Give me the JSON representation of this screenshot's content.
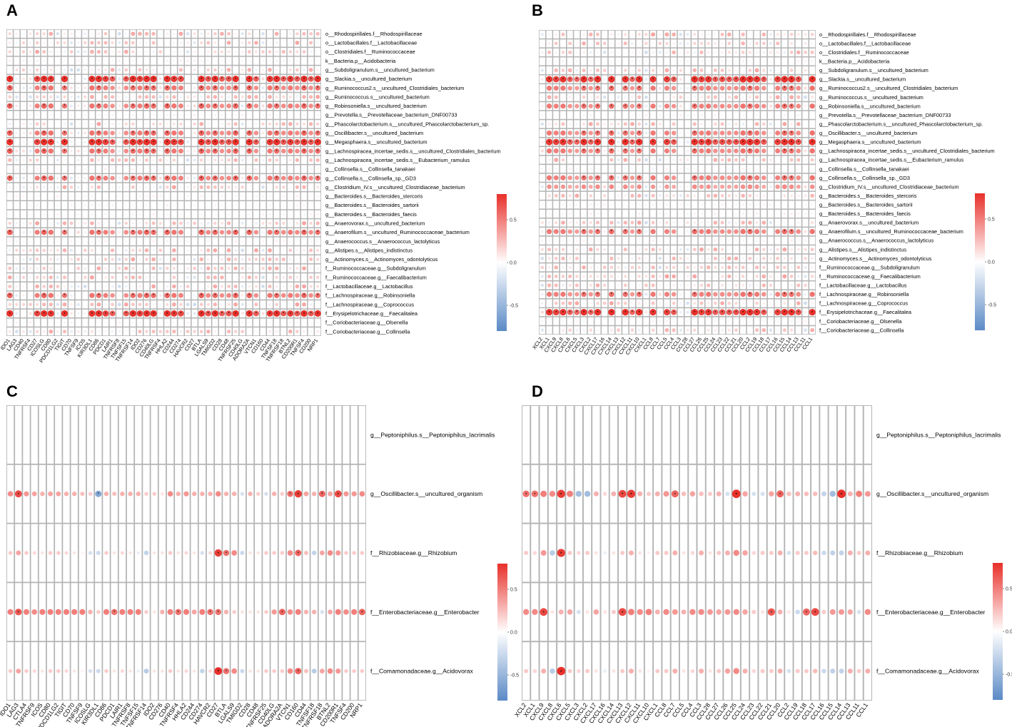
{
  "figure": {
    "panel_labels": [
      "A",
      "B",
      "C",
      "D"
    ],
    "legend_ticks": [
      "0.5",
      "0.0",
      "-0.5"
    ]
  },
  "colors": {
    "positive": "#e8302a",
    "negative": "#5b8ac6",
    "neutral": "#ffffff",
    "grid": "#b5b5b5",
    "star": "#000000"
  },
  "chart_data": [
    {
      "panel": "A",
      "type": "heatmap",
      "mark": "circle",
      "color_range": [
        -0.8,
        0.8
      ],
      "x_categories": [
        "IDO1",
        "LAG3",
        "CD40",
        "TNFRSF4",
        "CD27",
        "ICOSLG",
        "CD80",
        "PDCD1LG2",
        "TIGIT",
        "CD70",
        "TNFSF9",
        "ICOS",
        "KIR3DL1",
        "CD86",
        "PDCD1",
        "LAIR1",
        "TNFRSF8",
        "TNFSF15",
        "TNFRSF14",
        "IDO2",
        "CD276",
        "CD40LG",
        "TNFRSF4",
        "HHLA2",
        "CD244",
        "CD274",
        "HAVCR2",
        "CD27",
        "BTLA",
        "LGALS9",
        "TMIGD2",
        "CD28",
        "CD48",
        "TNFRSF25",
        "CD40LG",
        "ADORA2A",
        "VTCN1",
        "CD160",
        "CD44",
        "TNFSF18",
        "TNFRSF18",
        "BTNL2",
        "CD200R1",
        "TNFSF4",
        "CD200",
        "NRP1"
      ],
      "y_categories": [
        "o__Rhodospirillales.f__Rhodospirillaceae",
        "o__Lactobacillales.f__Lactobacillaceae",
        "o__Clostridiales.f__Ruminococcaceae",
        "k__Bacteria.p__Acidobacteria",
        "g__Subdoligranulum.s__uncultured_bacterium",
        "g__Slackia.s__uncultured_bacterium",
        "g__Ruminococcus2.s__uncultured_Clostridiales_bacterium",
        "g__Ruminococcus.s__uncultured_bacterium",
        "g__Robinsoniella.s__uncultured_bacterium",
        "g__Prevotella.s__Prevotellaceae_bacterium_DNF00733",
        "g__Phascolarctobacterium.s__uncultured_Phascolarctobacterium_sp.",
        "g__Oscillibacter.s__uncultured_bacterium",
        "g__Megasphaera.s__uncultured_bacterium",
        "g__Lachnospiracea_incertae_sedis.s__uncultured_Clostridiales_bacterium",
        "g__Lachnospiracea_incertae_sedis.s__Eubacterium_ramulus",
        "g__Collinsella.s__Collinsella_tanakaei",
        "g__Collinsella.s__Collinsella_sp._GD3",
        "g__Clostridium_IV.s__uncultured_Clostridiaceae_bacterium",
        "g__Bacteroides.s__Bacteroides_stercoris",
        "g__Bacteroides.s__Bacteroides_sartorii",
        "g__Bacteroides.s__Bacteroides_faecis",
        "g__Anaerovorax.s__uncultured_bacterium",
        "g__Anaerofilum.s__uncultured_Ruminococcaceae_bacterium",
        "g__Anaerococcus.s__Anaerococcus_lactolyticus",
        "g__Alistipes.s__Alistipes_indistinctus",
        "g__Actinomyces.s__Actinomyces_odontolyticus",
        "f__Ruminococcaceae.g__Subdoligranulum",
        "f__Ruminococcaceae.g__Faecalibacterium",
        "f__Lactobacillaceae.g__Lactobacillus",
        "f__Lachnospiraceae.g__Robinsoniella",
        "f__Lachnospiraceae.g__Coprococcus",
        "f__Erysipelotrichaceae.g__Faecalitalea",
        "f__Coriobacteriaceae.g__Olsenella",
        "f__Coriobacteriaceae.g__Collinsella"
      ],
      "strong_rows": [
        {
          "row": 5,
          "level": 0.8
        },
        {
          "row": 12,
          "level": 0.8
        },
        {
          "row": 31,
          "level": 0.8
        },
        {
          "row": 6,
          "level": 0.55
        },
        {
          "row": 8,
          "level": 0.55
        },
        {
          "row": 11,
          "level": 0.55
        },
        {
          "row": 13,
          "level": 0.55
        },
        {
          "row": 16,
          "level": 0.55
        },
        {
          "row": 22,
          "level": 0.55
        },
        {
          "row": 29,
          "level": 0.55
        },
        {
          "row": 3,
          "level": 0.0
        },
        {
          "row": 9,
          "level": 0.0
        },
        {
          "row": 15,
          "level": 0.0
        },
        {
          "row": 18,
          "level": 0.0
        },
        {
          "row": 19,
          "level": 0.0
        },
        {
          "row": 20,
          "level": 0.0
        },
        {
          "row": 23,
          "level": 0.0
        },
        {
          "row": 32,
          "level": 0.0
        }
      ],
      "seed": 11
    },
    {
      "panel": "B",
      "type": "heatmap",
      "mark": "circle",
      "color_range": [
        -0.8,
        0.8
      ],
      "x_categories": [
        "XCL2",
        "XCL1",
        "CXCL9",
        "CXCL8",
        "CXCL6",
        "CXCL5",
        "CXCL3",
        "CXCL2",
        "CXCL17",
        "CXCL16",
        "CXCL14",
        "CXCL13",
        "CXCL12",
        "CXCL11",
        "CXCL10",
        "CXCL1",
        "CCL8",
        "CCL7",
        "CCL5",
        "CCL4",
        "CCL3",
        "CCL28",
        "CCL27",
        "CCL26",
        "CCL25",
        "CCL24",
        "CCL23",
        "CCL22",
        "CCL21",
        "CCL20",
        "CCL2",
        "CCL19",
        "CCL18",
        "CCL17",
        "CCL16",
        "CCL15",
        "CCL14",
        "CCL13",
        "CCL11",
        "CCL1"
      ],
      "y_categories": [
        "o__Rhodospirillales.f__Rhodospirillaceae",
        "o__Lactobacillales.f__Lactobacillaceae",
        "o__Clostridiales.f__Ruminococcaceae",
        "k__Bacteria.p__Acidobacteria",
        "g__Subdoligranulum.s__uncultured_bacterium",
        "g__Slackia.s__uncultured_bacterium",
        "g__Ruminococcus2.s__uncultured_Clostridiales_bacterium",
        "g__Ruminococcus.s__uncultured_bacterium",
        "g__Robinsoniella.s__uncultured_bacterium",
        "g__Prevotella.s__Prevotellaceae_bacterium_DNF00733",
        "g__Phascolarctobacterium.s__uncultured_Phascolarctobacterium_sp.",
        "g__Oscillibacter.s__uncultured_bacterium",
        "g__Megasphaera.s__uncultured_bacterium",
        "g__Lachnospiracea_incertae_sedis.s__uncultured_Clostridiales_bacterium",
        "g__Lachnospiracea_incertae_sedis.s__Eubacterium_ramulus",
        "g__Collinsella.s__Collinsella_tanakaei",
        "g__Collinsella.s__Collinsella_sp._GD3",
        "g__Clostridium_IV.s__uncultured_Clostridiaceae_bacterium",
        "g__Bacteroides.s__Bacteroides_stercoris",
        "g__Bacteroides.s__Bacteroides_sartorii",
        "g__Bacteroides.s__Bacteroides_faecis",
        "g__Anaerovorax.s__uncultured_bacterium",
        "g__Anaerofilum.s__uncultured_Ruminococcaceae_bacterium",
        "g__Anaerococcus.s__Anaerococcus_lactolyticus",
        "g__Alistipes.s__Alistipes_indistinctus",
        "g__Actinomyces.s__Actinomyces_odontolyticus",
        "f__Ruminococcaceae.g__Subdoligranulum",
        "f__Ruminococcaceae.g__Faecalibacterium",
        "f__Lactobacillaceae.g__Lactobacillus",
        "f__Lachnospiraceae.g__Robinsoniella",
        "f__Lachnospiraceae.g__Coprococcus",
        "f__Erysipelotrichaceae.g__Faecalitalea",
        "f__Coriobacteriaceae.g__Olsenella",
        "f__Coriobacteriaceae.g__Collinsella"
      ],
      "strong_rows": [
        {
          "row": 5,
          "level": 0.75
        },
        {
          "row": 12,
          "level": 0.75
        },
        {
          "row": 31,
          "level": 0.75
        },
        {
          "row": 6,
          "level": 0.5
        },
        {
          "row": 8,
          "level": 0.5
        },
        {
          "row": 11,
          "level": 0.5
        },
        {
          "row": 13,
          "level": 0.5
        },
        {
          "row": 16,
          "level": 0.5
        },
        {
          "row": 22,
          "level": 0.5
        },
        {
          "row": 29,
          "level": 0.5
        },
        {
          "row": 17,
          "level": 0.4
        },
        {
          "row": 3,
          "level": 0.0
        },
        {
          "row": 9,
          "level": 0.0
        },
        {
          "row": 15,
          "level": 0.0
        },
        {
          "row": 19,
          "level": 0.0
        },
        {
          "row": 20,
          "level": 0.0
        },
        {
          "row": 23,
          "level": 0.0
        },
        {
          "row": 32,
          "level": 0.0
        }
      ],
      "seed": 23
    },
    {
      "panel": "C",
      "type": "heatmap",
      "mark": "circle",
      "color_range": [
        -0.8,
        0.8
      ],
      "x_categories": [
        "IDO1",
        "LAG3",
        "CTLA4",
        "TNFRSF9",
        "ICOS",
        "CD80",
        "PDCD1LG2",
        "TIGIT",
        "CD70",
        "TNFSF9",
        "ICOSLG",
        "KIR3DL1",
        "CD86",
        "PDCD1",
        "LAIR1",
        "TNFRSF8",
        "TNFSF15",
        "TNFRSF14",
        "IDO2",
        "CD276",
        "CD40",
        "TNFRSF4",
        "HHLA2",
        "CD244",
        "CD274",
        "HAVCR2",
        "CD27",
        "BTLA",
        "LGALS9",
        "TMIGD2",
        "CD28",
        "CD48",
        "TNFRSF25",
        "CD40LG",
        "ADORA2A",
        "VTCN1",
        "CD160",
        "CD44",
        "TNFSF18",
        "TNFRSF18",
        "BTNL2",
        "CD200R1",
        "TNFSF4",
        "CD200",
        "NRP1"
      ],
      "y_categories": [
        "g__Peptoniphilus.s__Peptoniphilus_lacrimalis",
        "g__Oscillibacter.s__uncultured_organism",
        "f__Rhizobiaceae.g__Rhizobium",
        "f__Enterobacteriaceae.g__Enterobacter",
        "f__Comamonadaceae.g__Acidovorax"
      ],
      "rows_values": [
        [
          0,
          0,
          0,
          0,
          0,
          0,
          0,
          0,
          0,
          0,
          0,
          0,
          0,
          0,
          0,
          0,
          0,
          0,
          0,
          0,
          0,
          0,
          0,
          0,
          0,
          0,
          0,
          0,
          0,
          0,
          0,
          0,
          0,
          0,
          0,
          0,
          0,
          0,
          0,
          0,
          0,
          0,
          0,
          0,
          0
        ],
        [
          0.45,
          0.7,
          0.4,
          0.35,
          0.3,
          0.35,
          0.35,
          0.3,
          0.3,
          0.25,
          0.2,
          -0.6,
          0.3,
          0.25,
          0.3,
          0.3,
          0.3,
          0.2,
          0.2,
          0.1,
          0.45,
          0.3,
          0.4,
          0.3,
          0.3,
          0.3,
          0.45,
          0.3,
          0.3,
          -0.2,
          0.3,
          0.2,
          -0.2,
          0.3,
          0.2,
          0.55,
          0.75,
          0.35,
          0.3,
          0.6,
          0.35,
          0.7,
          0.4,
          0.4,
          0.45
        ],
        [
          0.2,
          0.35,
          0.2,
          0.15,
          0.1,
          0.2,
          0.2,
          0.15,
          0.1,
          0.05,
          -0.2,
          -0.25,
          0.2,
          0.1,
          0.15,
          0.1,
          -0.1,
          -0.3,
          0.1,
          0.1,
          0.2,
          0.1,
          0.15,
          0.1,
          -0.2,
          0.15,
          0.75,
          0.55,
          0.45,
          -0.25,
          0.1,
          0.1,
          0.2,
          0.2,
          0.2,
          0.45,
          0.6,
          0.25,
          -0.3,
          0.35,
          0.45,
          0.4,
          0.2,
          0.2,
          0.2
        ],
        [
          0.5,
          0.65,
          0.5,
          0.45,
          0.5,
          0.5,
          0.5,
          0.5,
          0.5,
          0.5,
          0.3,
          0.2,
          0.5,
          0.55,
          0.5,
          0.5,
          0.5,
          0.2,
          0.1,
          0.3,
          0.5,
          0.55,
          0.5,
          0.35,
          0.5,
          0.55,
          0.55,
          0.3,
          0.2,
          0.1,
          0.1,
          0.1,
          0.2,
          0.4,
          0.6,
          0.45,
          0.5,
          0.3,
          0.3,
          -0.2,
          0.35,
          0.5,
          0.45,
          0.5,
          0.6
        ],
        [
          0.2,
          0.35,
          0.2,
          0.15,
          0.1,
          0.2,
          0.2,
          0.15,
          0.1,
          0.05,
          -0.2,
          -0.25,
          0.2,
          0.1,
          0.15,
          0.1,
          -0.1,
          -0.35,
          0.1,
          0.1,
          0.2,
          0.1,
          0.15,
          0.1,
          -0.3,
          0.15,
          0.8,
          0.55,
          0.45,
          -0.25,
          0.1,
          0.1,
          0.2,
          0.2,
          0.2,
          0.45,
          0.6,
          0.25,
          -0.35,
          0.35,
          0.45,
          0.4,
          0.2,
          0.2,
          0.2
        ]
      ]
    },
    {
      "panel": "D",
      "type": "heatmap",
      "mark": "circle",
      "color_range": [
        -0.8,
        0.8
      ],
      "x_categories": [
        "XCL2",
        "XCL1",
        "CXCL9",
        "CXCL8",
        "CXCL6",
        "CXCL5",
        "CXCL3",
        "CXCL2",
        "CXCL17",
        "CXCL16",
        "CXCL14",
        "CXCL13",
        "CXCL12",
        "CXCL11",
        "CXCL10",
        "CXCL1",
        "CCL8",
        "CCL7",
        "CCL5",
        "CCL4",
        "CCL3",
        "CCL28",
        "CCL27",
        "CCL26",
        "CCL25",
        "CCL24",
        "CCL23",
        "CCL22",
        "CCL21",
        "CCL20",
        "CCL2",
        "CCL19",
        "CCL18",
        "CCL17",
        "CCL16",
        "CCL15",
        "CCL14",
        "CCL13",
        "CCL11",
        "CCL1"
      ],
      "y_categories": [
        "g__Peptoniphilus.s__Peptoniphilus_lacrimalis",
        "g__Oscillibacter.s__uncultured_organism",
        "f__Rhizobiaceae.g__Rhizobium",
        "f__Enterobacteriaceae.g__Enterobacter",
        "f__Comamonadaceae.g__Acidovorax"
      ],
      "rows_values": [
        [
          0,
          0,
          0,
          0,
          0,
          0,
          0,
          0,
          0,
          0,
          0,
          0,
          0,
          0,
          0,
          0,
          0,
          0,
          0,
          0,
          0,
          0,
          0,
          0,
          0,
          0,
          0,
          0,
          0,
          0,
          0,
          0,
          0,
          0,
          0,
          0,
          0,
          0,
          0,
          0
        ],
        [
          0.55,
          0.55,
          0.5,
          0.45,
          0.75,
          0.5,
          -0.45,
          -0.45,
          0.3,
          0.15,
          0.3,
          0.7,
          0.75,
          0.3,
          0.2,
          0.3,
          0.4,
          0.6,
          0.25,
          0.35,
          0.25,
          0.2,
          0.3,
          -0.2,
          0.8,
          0.35,
          -0.2,
          -0.2,
          0.35,
          0.6,
          0.25,
          0.3,
          0.25,
          0.25,
          -0.3,
          -0.45,
          0.8,
          0.3,
          0.5,
          0.4
        ],
        [
          0.2,
          0.15,
          0.4,
          -0.35,
          0.75,
          0.2,
          0.15,
          0.2,
          0.1,
          -0.1,
          0.1,
          0.2,
          0.3,
          0.1,
          0.05,
          0.2,
          0.2,
          0.3,
          0.1,
          0.15,
          0.3,
          0.1,
          0.2,
          0.3,
          0.45,
          0.35,
          0.15,
          0.2,
          0.2,
          0.3,
          -0.2,
          0.2,
          0.2,
          0.25,
          -0.25,
          -0.3,
          -0.3,
          0.3,
          0.2,
          0.3
        ],
        [
          0.45,
          0.45,
          0.7,
          0.1,
          0.3,
          0.35,
          -0.2,
          0.1,
          0.35,
          0.1,
          0.2,
          0.7,
          0.5,
          0.45,
          0.5,
          0.3,
          0.45,
          0.4,
          0.3,
          0.45,
          0.45,
          0.4,
          0.35,
          0.4,
          0.45,
          0.35,
          0.2,
          0.1,
          0.65,
          0.3,
          0.1,
          -0.25,
          0.6,
          0.7,
          0.2,
          0.4,
          0.4,
          0.35,
          -0.2,
          0.45
        ],
        [
          0.2,
          0.15,
          0.3,
          -0.35,
          0.8,
          0.2,
          0.15,
          0.2,
          0.1,
          -0.1,
          0.1,
          0.2,
          0.3,
          0.1,
          0.05,
          0.2,
          0.2,
          0.3,
          0.1,
          0.15,
          0.3,
          0.1,
          0.2,
          0.35,
          0.45,
          0.3,
          0.15,
          0.2,
          0.2,
          0.3,
          -0.2,
          0.2,
          0.2,
          0.25,
          -0.25,
          -0.3,
          -0.3,
          0.3,
          0.2,
          0.3
        ]
      ]
    }
  ]
}
